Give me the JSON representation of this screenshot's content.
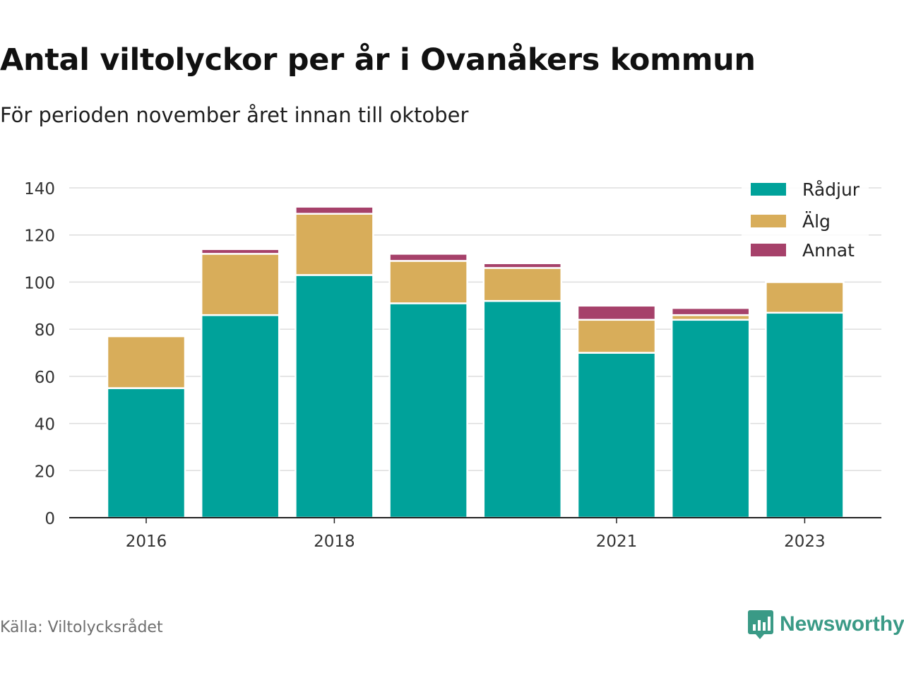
{
  "title": "Antal viltolyckor per år i Ovanåkers kommun",
  "subtitle": "För perioden november året innan till oktober",
  "source": "Källa: Viltolycksrådet",
  "brand": {
    "name": "Newsworthy",
    "icon": "newsworthy-logo-icon"
  },
  "colors": {
    "radjur": "#00a29a",
    "alg": "#d8ad5a",
    "annat": "#a6416a",
    "grid": "#dddddd",
    "axis": "#222222"
  },
  "chart_data": {
    "type": "bar",
    "stacked": true,
    "categories": [
      "2016",
      "2017",
      "2018",
      "2019",
      "2020",
      "2021",
      "2022",
      "2023"
    ],
    "x_tick_labels": [
      "2016",
      "",
      "2018",
      "",
      "",
      "2021",
      "",
      "2023"
    ],
    "series": [
      {
        "name": "Rådjur",
        "values": [
          55,
          86,
          103,
          91,
          92,
          70,
          84,
          87
        ]
      },
      {
        "name": "Älg",
        "values": [
          22,
          26,
          26,
          18,
          14,
          14,
          2,
          13
        ]
      },
      {
        "name": "Annat",
        "values": [
          0,
          2,
          3,
          3,
          2,
          6,
          3,
          0
        ]
      }
    ],
    "ylim": [
      0,
      140
    ],
    "y_ticks": [
      "0",
      "20",
      "40",
      "60",
      "80",
      "100",
      "120",
      "140"
    ],
    "grid": true,
    "legend_position": "top-right"
  }
}
